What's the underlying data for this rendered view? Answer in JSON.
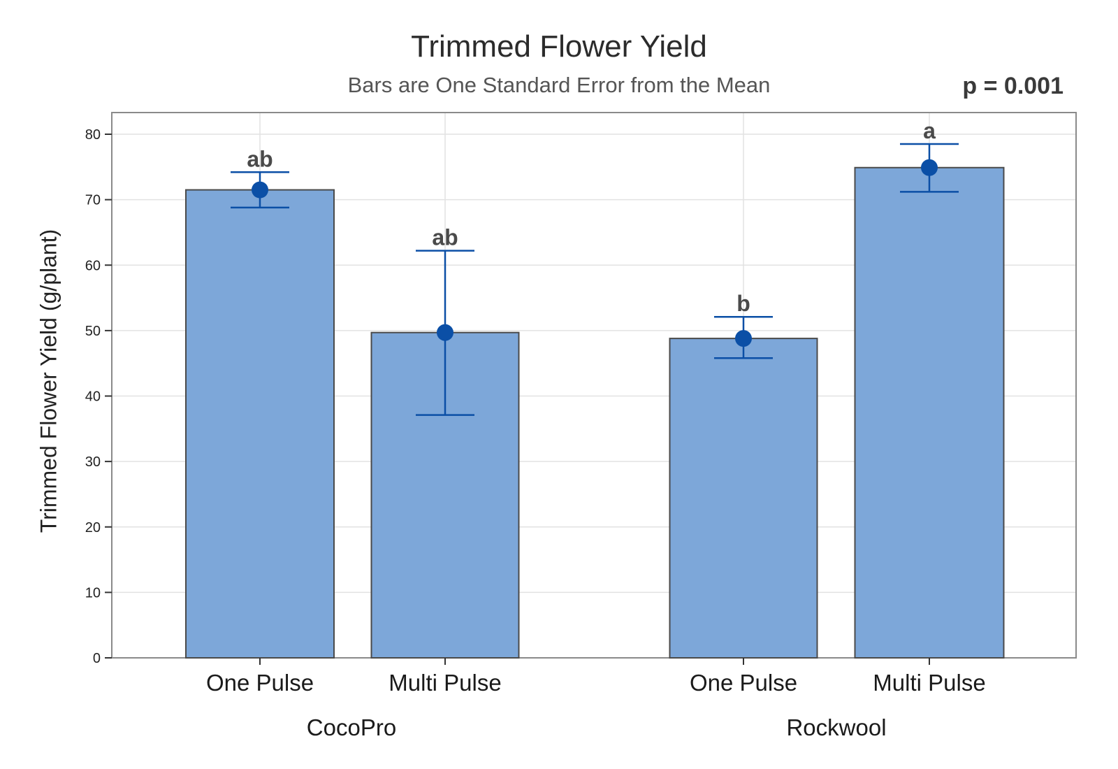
{
  "chart_data": {
    "type": "bar",
    "title": "Trimmed Flower Yield",
    "subtitle": "Bars are One Standard Error from the Mean",
    "annotation": "p = 0.001",
    "ylabel": "Trimmed Flower Yield (g/plant)",
    "xlabel": "",
    "ylim": [
      0,
      83
    ],
    "yticks": [
      0,
      10,
      20,
      30,
      40,
      50,
      60,
      70,
      80
    ],
    "grid": true,
    "groups": [
      {
        "name": "CocoPro",
        "categories": [
          "One Pulse",
          "Multi Pulse"
        ],
        "values": [
          71.5,
          49.7
        ],
        "error_low": [
          68.8,
          37.1
        ],
        "error_high": [
          74.2,
          62.2
        ],
        "letters": [
          "ab",
          "ab"
        ]
      },
      {
        "name": "Rockwool",
        "categories": [
          "One Pulse",
          "Multi Pulse"
        ],
        "values": [
          48.8,
          74.9
        ],
        "error_low": [
          45.8,
          71.2
        ],
        "error_high": [
          52.1,
          78.5
        ],
        "letters": [
          "b",
          "a"
        ]
      }
    ],
    "colors": {
      "bar_fill": "#7da7d9",
      "bar_stroke": "#4a4a4a",
      "point": "#0b4fa6",
      "error_bar": "#0b4fa6",
      "grid": "#e2e2e2",
      "frame": "#8a8a8a"
    }
  }
}
